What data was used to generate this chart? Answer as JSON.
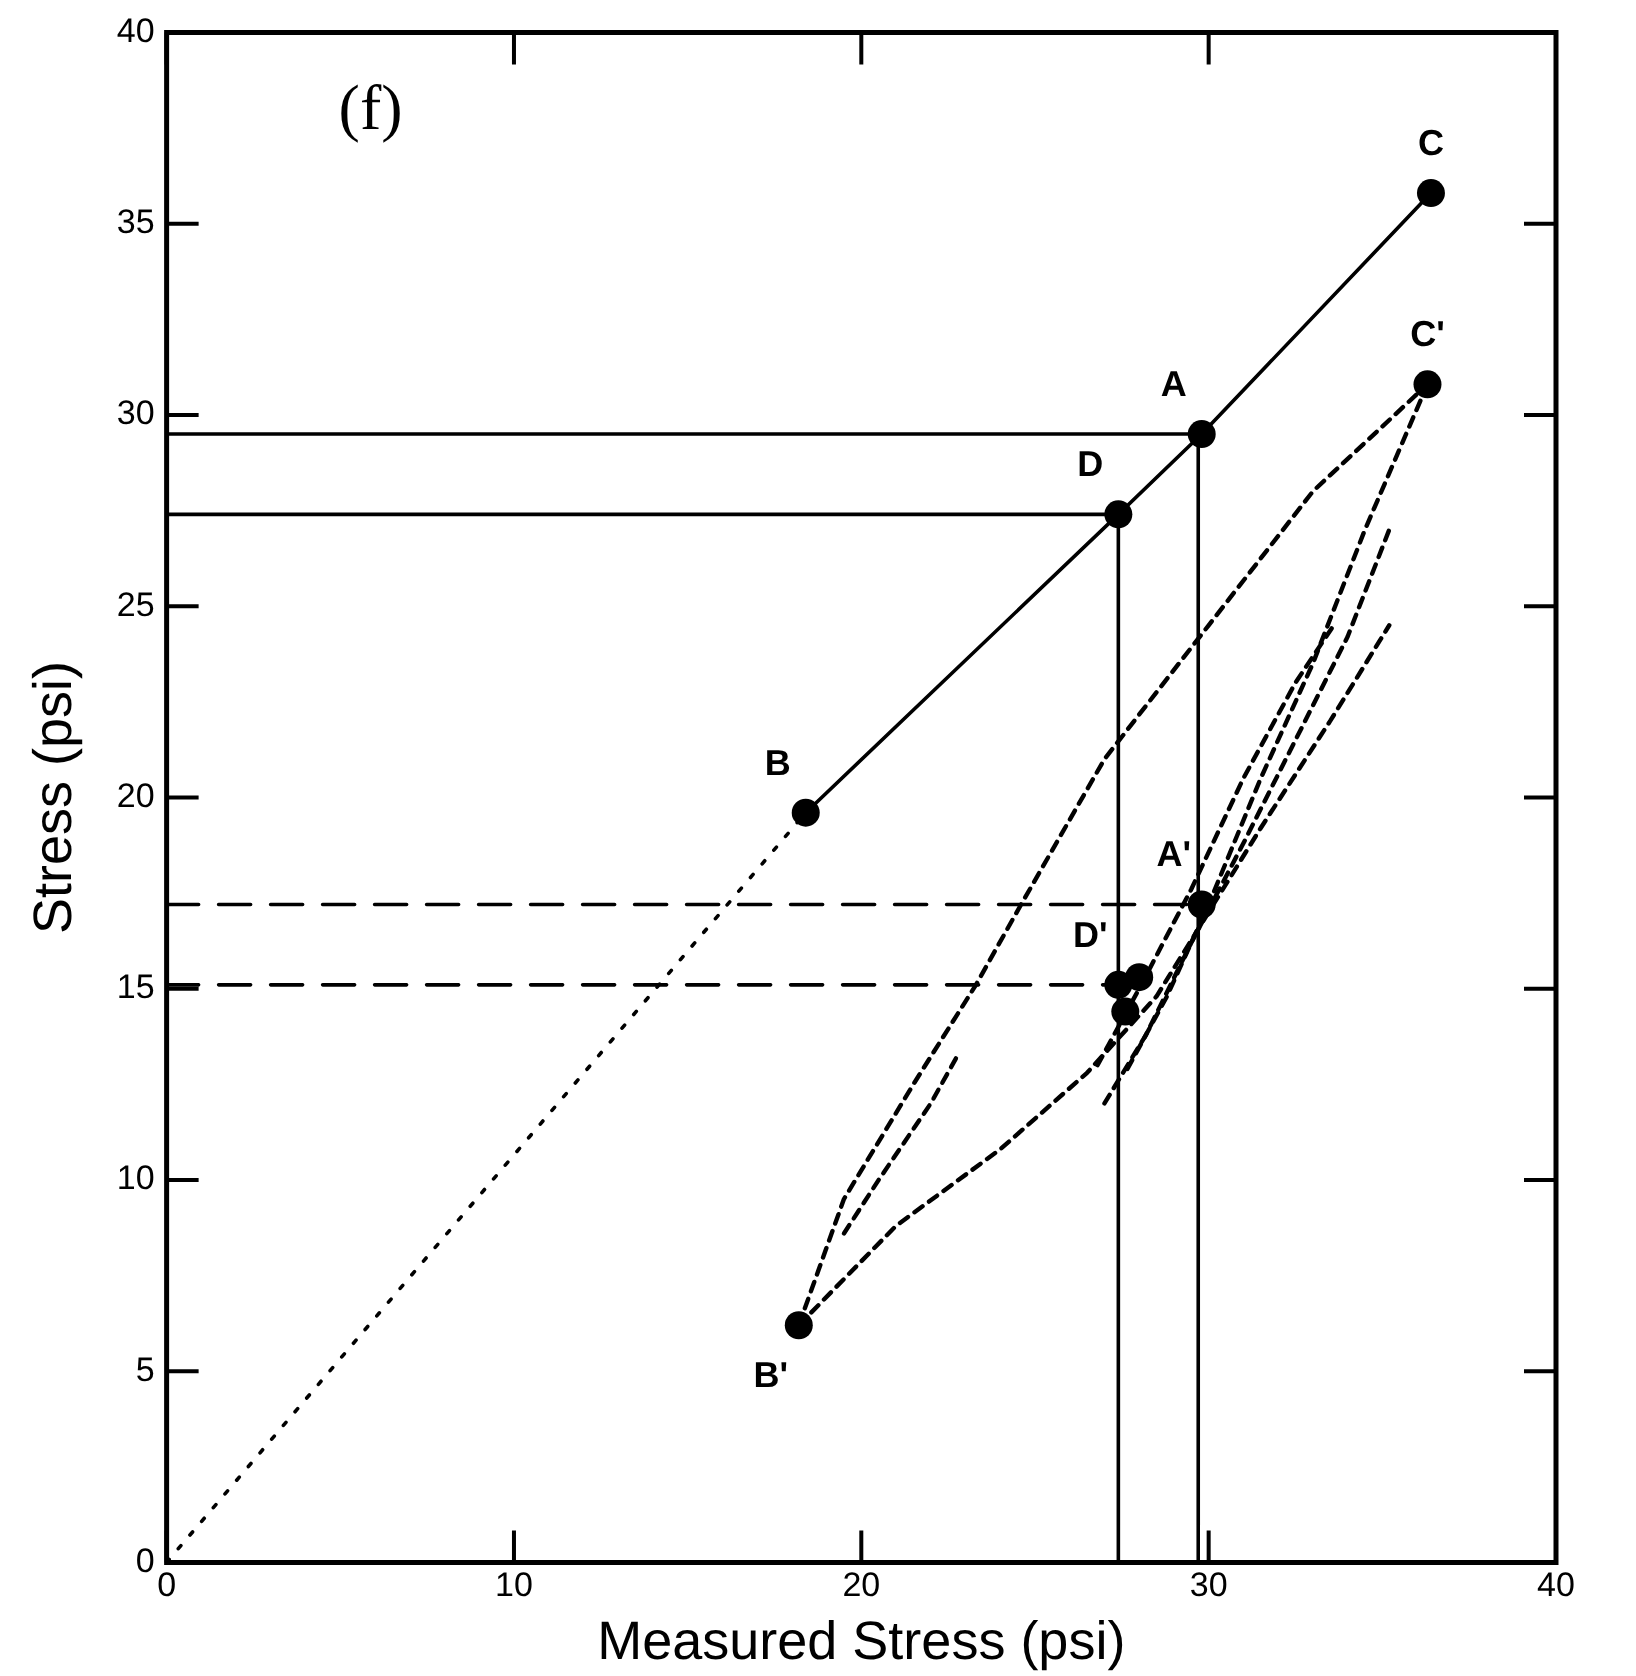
{
  "chart_data": {
    "type": "line",
    "xlabel": "Measured Stress (psi)",
    "ylabel": "Stress (psi)",
    "xlim": [
      0,
      40
    ],
    "ylim": [
      0,
      40
    ],
    "xticks": [
      0,
      10,
      20,
      30,
      40
    ],
    "yticks": [
      0,
      5,
      10,
      15,
      20,
      25,
      30,
      35,
      40
    ],
    "grid": false,
    "legend": false,
    "series": [
      {
        "type": "line",
        "color": "#000000",
        "marker": "circle",
        "line_style": "solid",
        "x": [
          18.4,
          27.4,
          29.8,
          36.4
        ],
        "values": [
          19.6,
          27.4,
          29.5,
          35.8
        ]
      },
      {
        "type": "line",
        "color": "#000000",
        "marker": "none",
        "line_style": "dotted",
        "x": [
          0,
          18.4
        ],
        "values": [
          0,
          19.6
        ]
      },
      {
        "type": "line",
        "color": "#000000",
        "marker": "none",
        "line_style": "solid",
        "x": [
          0,
          29.7,
          29.7
        ],
        "values": [
          29.5,
          29.5,
          0
        ]
      },
      {
        "type": "line",
        "color": "#000000",
        "marker": "none",
        "line_style": "solid",
        "x": [
          0,
          27.4,
          27.4
        ],
        "values": [
          27.4,
          27.4,
          0
        ]
      },
      {
        "type": "line",
        "color": "#000000",
        "marker": "none",
        "line_style": "longdash",
        "x": [
          0,
          29.8
        ],
        "values": [
          17.2,
          17.2
        ]
      },
      {
        "type": "line",
        "color": "#000000",
        "marker": "none",
        "line_style": "longdash",
        "x": [
          0,
          27.3
        ],
        "values": [
          15.1,
          15.1
        ]
      },
      {
        "type": "line",
        "color": "#000000",
        "marker": "none",
        "line_style": "dashed",
        "x": [
          18.2,
          19.5,
          21.5,
          23.3,
          24.6,
          27,
          30,
          33,
          36.3
        ],
        "values": [
          6.2,
          9.5,
          12.5,
          15.1,
          17.2,
          21,
          24.5,
          28,
          30.8
        ]
      },
      {
        "type": "line",
        "color": "#000000",
        "marker": "none",
        "line_style": "dashed",
        "x": [
          36.3,
          34.5,
          33,
          31.5,
          30,
          28.8,
          27.6
        ],
        "values": [
          30.8,
          27,
          23.5,
          20.5,
          17.2,
          14.8,
          12.8
        ]
      },
      {
        "type": "line",
        "color": "#000000",
        "marker": "none",
        "line_style": "dashed",
        "x": [
          18.2,
          21,
          24,
          26.5,
          28.5,
          30,
          31.5,
          33.5,
          35.2
        ],
        "values": [
          6.2,
          8.8,
          10.8,
          12.8,
          14.8,
          17,
          19.2,
          22,
          24.5
        ]
      },
      {
        "type": "line",
        "color": "#000000",
        "marker": "none",
        "line_style": "dashed",
        "x": [
          19.5,
          20.5,
          22,
          22.8
        ],
        "values": [
          8.6,
          10,
          12,
          13.3
        ]
      },
      {
        "type": "line",
        "color": "#000000",
        "marker": "none",
        "line_style": "dashed",
        "x": [
          27,
          28.2,
          29.5,
          31,
          32.5,
          34,
          35.2
        ],
        "values": [
          12,
          13.8,
          16.2,
          18.8,
          21.5,
          24.2,
          27
        ]
      },
      {
        "type": "line",
        "color": "#000000",
        "marker": "none",
        "line_style": "dashed",
        "x": [
          26.8,
          28,
          29.5,
          31,
          32.5,
          33.6
        ],
        "values": [
          13,
          15,
          17.6,
          20.5,
          23,
          24.5
        ]
      },
      {
        "type": "scatter",
        "color": "#000000",
        "marker": "circle",
        "x": [
          18.2,
          27.4,
          29.8,
          36.3,
          28,
          27.6
        ],
        "values": [
          6.2,
          15.1,
          17.2,
          30.8,
          15.3,
          14.4
        ]
      }
    ],
    "annotations": [
      "(f)",
      {
        "text": "C",
        "x": 36.4,
        "y": 35.8
      },
      {
        "text": "A",
        "x": 29.8,
        "y": 29.5
      },
      {
        "text": "D",
        "x": 27.4,
        "y": 27.4
      },
      {
        "text": "B",
        "x": 18.4,
        "y": 19.6
      },
      {
        "text": "C'",
        "x": 36.3,
        "y": 30.8
      },
      {
        "text": "A'",
        "x": 29.8,
        "y": 17.2
      },
      {
        "text": "D'",
        "x": 27.4,
        "y": 15.1
      },
      {
        "text": "B'",
        "x": 18.2,
        "y": 6.2
      }
    ]
  }
}
